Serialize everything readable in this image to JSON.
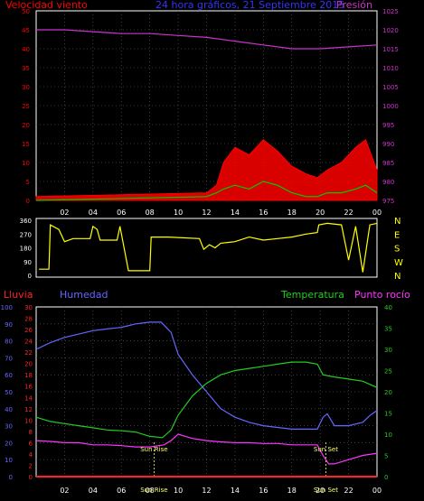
{
  "colors": {
    "background": "#000000",
    "wind": "#ff0000",
    "gust": "#ffffff",
    "wind_avg": "#00cc00",
    "pressure": "#cc33cc",
    "direction": "#ffff00",
    "direction_frame": "#ffffff",
    "rain": "#ff2222",
    "humidity": "#6666ff",
    "temperature": "#22cc22",
    "dewpoint": "#ff33ff",
    "sun": "#ffff66",
    "grid": "#666666"
  },
  "header": {
    "wind_label": "Velocidad viento",
    "title": "24 hora gráficos, 21 Septiembre 2015",
    "pressure_label": "Presión"
  },
  "bottom_header": {
    "rain_label": "Lluvia",
    "humidity_label": "Humedad",
    "temperature_label": "Temperatura",
    "dewpoint_label": "Punto rocío"
  },
  "chart_data": [
    {
      "type": "line",
      "id": "wind-pressure",
      "title": "24 hora gráficos, 21 Septiembre 2015",
      "x_ticks": [
        "02",
        "04",
        "06",
        "08",
        "10",
        "12",
        "14",
        "16",
        "18",
        "20",
        "22",
        "00"
      ],
      "y_left": {
        "label": "Velocidad viento",
        "range": [
          0,
          50
        ],
        "ticks": [
          0,
          5,
          10,
          15,
          20,
          25,
          30,
          35,
          40,
          45,
          50
        ]
      },
      "y_right": {
        "label": "Presión",
        "range": [
          975,
          1025
        ],
        "ticks": [
          975,
          980,
          985,
          990,
          995,
          1000,
          1005,
          1010,
          1015,
          1020,
          1025
        ]
      },
      "grid": true,
      "series": [
        {
          "name": "Presión",
          "axis": "right",
          "x": [
            0,
            2,
            4,
            6,
            8,
            10,
            12,
            14,
            16,
            18,
            20,
            22,
            24
          ],
          "y": [
            1020,
            1020,
            1019.5,
            1019,
            1019,
            1018.5,
            1018,
            1017,
            1016,
            1015,
            1015,
            1015.5,
            1016
          ]
        },
        {
          "name": "Velocidad viento",
          "axis": "left",
          "x": [
            0,
            12,
            12.7,
            13.2,
            14,
            15,
            16,
            17,
            18,
            19,
            19.8,
            20.5,
            21.5,
            22.5,
            23.2,
            24
          ],
          "y": [
            1,
            2,
            4,
            10,
            14,
            12,
            16,
            13,
            9,
            7,
            6,
            8,
            10,
            14,
            16,
            8
          ]
        },
        {
          "axis": "left",
          "x": [
            0,
            12,
            12.7,
            13.2,
            14,
            15,
            16,
            17,
            18,
            19,
            19.8,
            20.5,
            21.5,
            22.5,
            23.2,
            24
          ],
          "y": [
            0,
            1,
            2,
            3,
            4,
            3,
            5,
            4,
            2,
            1,
            1,
            2,
            2,
            3,
            4,
            2
          ]
        }
      ]
    },
    {
      "type": "line",
      "id": "wind-direction",
      "y_left": {
        "range": [
          0,
          360
        ],
        "ticks": [
          0,
          90,
          180,
          270,
          360
        ]
      },
      "y_right": {
        "ticks": [
          "N",
          "E",
          "S",
          "W",
          "N"
        ]
      },
      "series": [
        {
          "axis": "left",
          "x": [
            0.2,
            0.9,
            1.0,
            1.6,
            2.0,
            2.6,
            3.8,
            4.0,
            4.3,
            4.5,
            5.7,
            5.9,
            6.5,
            8.0,
            8.1,
            9.3,
            11.5,
            11.8,
            12.2,
            12.6,
            13.0,
            14,
            15,
            16,
            17,
            18,
            19,
            19.8,
            19.9,
            20.5,
            21.5,
            22.0,
            22.5,
            23.0,
            23.5,
            24.0
          ],
          "y": [
            40,
            40,
            330,
            300,
            220,
            240,
            240,
            320,
            300,
            230,
            230,
            320,
            30,
            30,
            250,
            250,
            240,
            170,
            200,
            180,
            210,
            220,
            250,
            230,
            240,
            250,
            270,
            280,
            330,
            340,
            330,
            100,
            320,
            20,
            330,
            340
          ]
        }
      ]
    },
    {
      "type": "line",
      "id": "rain-humidity-temperature",
      "x_ticks": [
        "02",
        "04",
        "06",
        "08",
        "10",
        "12",
        "14",
        "16",
        "18",
        "20",
        "22",
        "00"
      ],
      "y_left_humidity": {
        "label": "Humedad",
        "range": [
          0,
          100
        ],
        "ticks": [
          0,
          10,
          20,
          30,
          40,
          50,
          60,
          70,
          80,
          90,
          100
        ]
      },
      "y_left_rain": {
        "label": "Lluvia",
        "range": [
          0,
          30
        ],
        "ticks": [
          0,
          2,
          4,
          6,
          8,
          10,
          12,
          14,
          16,
          18,
          20,
          22,
          24,
          26,
          28,
          30
        ]
      },
      "y_right": {
        "label": "Temperatura / Punto rocío",
        "range": [
          0,
          40
        ],
        "ticks": [
          0,
          5,
          10,
          15,
          20,
          25,
          30,
          35,
          40
        ]
      },
      "annotations": [
        {
          "text": "Sun Rise",
          "x": 8.3
        },
        {
          "text": "Sun Set",
          "x": 20.4
        }
      ],
      "grid": true,
      "series": [
        {
          "name": "Humedad",
          "axis": "humidity",
          "x": [
            0,
            1,
            2,
            3,
            4,
            5,
            6,
            7,
            8,
            8.8,
            9.5,
            10,
            11,
            12,
            13,
            14,
            15,
            16,
            17,
            18,
            19,
            19.8,
            20.2,
            20.5,
            21,
            22,
            23,
            23.5,
            24
          ],
          "y": [
            75,
            79,
            82,
            84,
            86,
            87,
            88,
            90,
            91,
            91,
            85,
            72,
            60,
            50,
            40,
            35,
            32,
            30,
            29,
            28,
            28,
            28,
            35,
            37,
            30,
            30,
            32,
            36,
            39
          ]
        },
        {
          "name": "Temperatura",
          "axis": "right",
          "x": [
            0,
            1,
            2,
            3,
            4,
            5,
            6,
            7,
            8,
            8.9,
            9.5,
            10,
            11,
            12,
            13,
            14,
            15,
            16,
            17,
            18,
            19,
            19.8,
            20.2,
            21,
            22,
            23,
            24
          ],
          "y": [
            14,
            13,
            12.5,
            12,
            11.5,
            11,
            10.8,
            10.5,
            9.5,
            9.2,
            11,
            14.5,
            19,
            22,
            24,
            25,
            25.5,
            26,
            26.5,
            27,
            27,
            26.5,
            24,
            23.5,
            23,
            22.5,
            21
          ]
        },
        {
          "name": "Punto rocío",
          "axis": "right",
          "x": [
            0,
            1,
            2,
            3,
            4,
            5,
            6,
            7,
            8,
            9,
            9.5,
            10,
            11,
            12,
            13,
            14,
            15,
            16,
            17,
            18,
            19,
            19.8,
            20.2,
            20.6,
            21,
            22,
            23,
            24
          ],
          "y": [
            8.5,
            8.3,
            8,
            8,
            7.5,
            7.5,
            7.3,
            7,
            7,
            7.5,
            8.5,
            10,
            9,
            8.5,
            8.2,
            8,
            8,
            7.8,
            7.8,
            7.5,
            7.5,
            7.5,
            5,
            3,
            3,
            4,
            5,
            5.5
          ]
        },
        {
          "name": "Lluvia",
          "axis": "rain",
          "x": [
            0,
            24
          ],
          "y": [
            0,
            0
          ]
        }
      ]
    }
  ]
}
